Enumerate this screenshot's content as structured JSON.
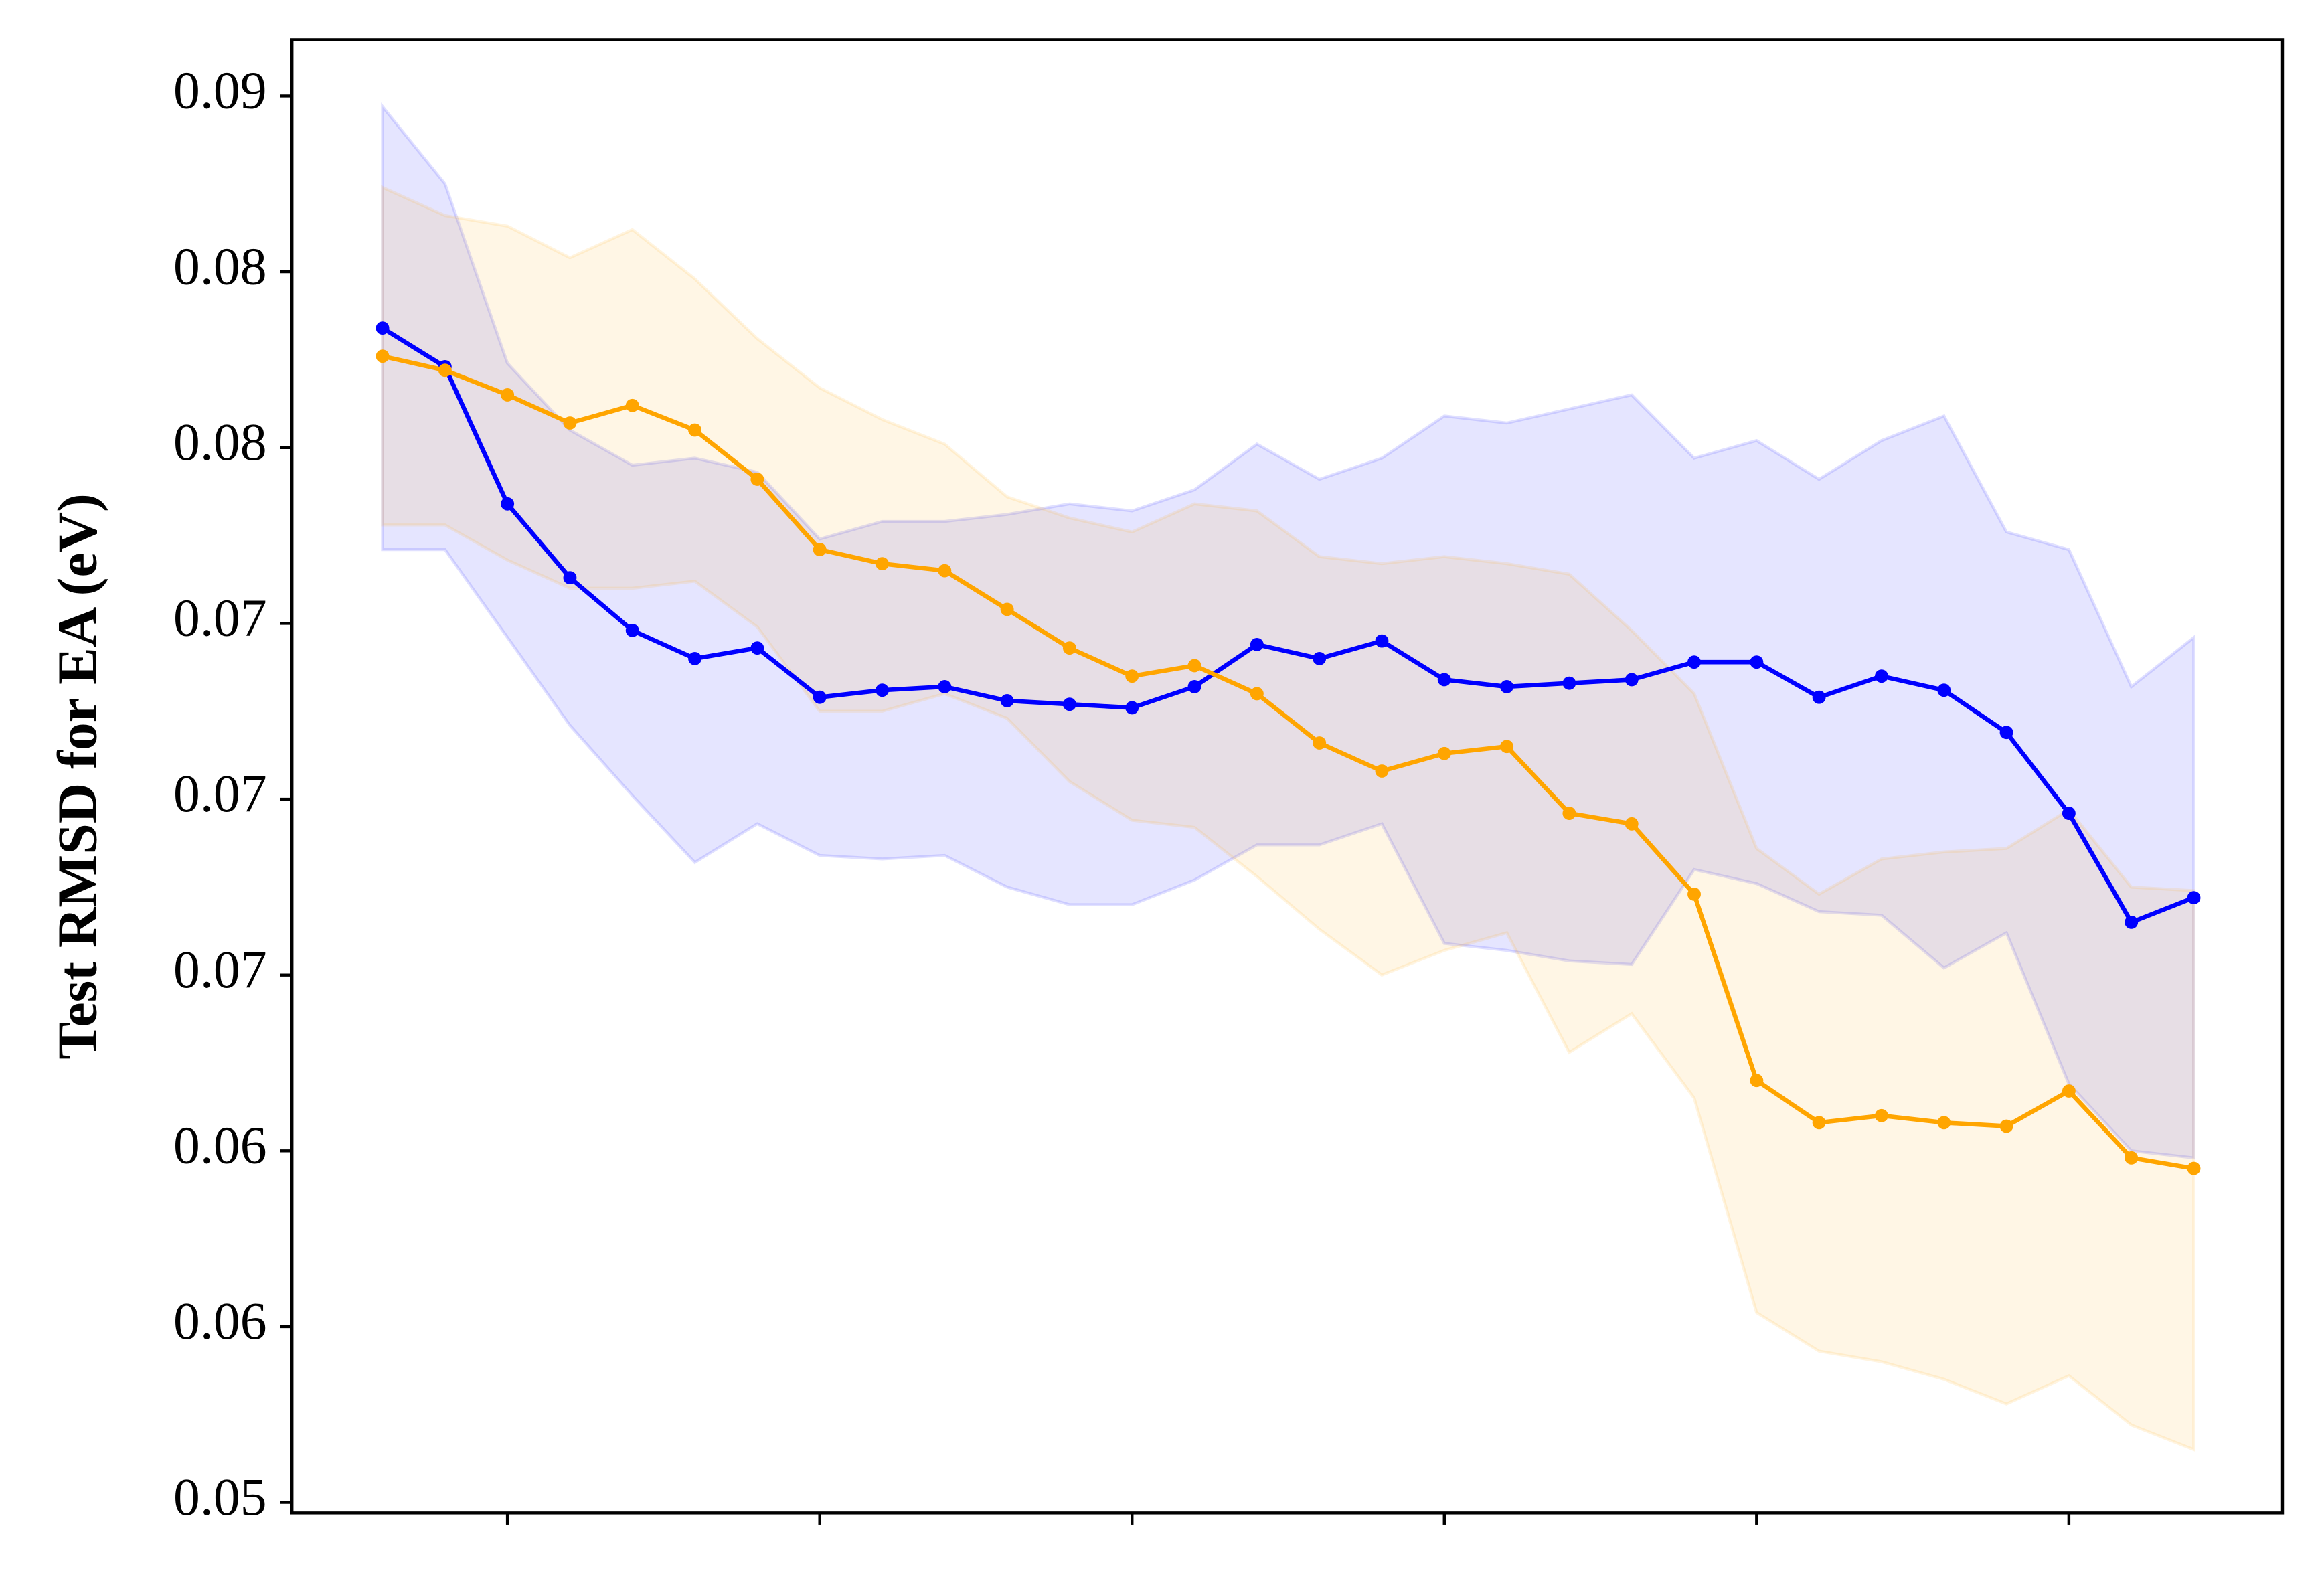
{
  "chart_data": {
    "type": "line",
    "y_label": "Test RMSD for EA (eV)",
    "x": [
      1,
      2,
      3,
      4,
      5,
      6,
      7,
      8,
      9,
      10,
      11,
      12,
      13,
      14,
      15,
      16,
      17,
      18,
      19,
      20,
      21,
      22,
      23,
      24,
      25,
      26,
      27,
      28,
      29,
      30
    ],
    "xlim": [
      -0.45,
      31.42
    ],
    "xticks": [
      3,
      8,
      13,
      18,
      23,
      28
    ],
    "ylim": [
      0.0497,
      0.0916
    ],
    "yticks": [
      {
        "value": 0.05,
        "label": "0.05"
      },
      {
        "value": 0.055,
        "label": "0.06"
      },
      {
        "value": 0.06,
        "label": "0.06"
      },
      {
        "value": 0.065,
        "label": "0.07"
      },
      {
        "value": 0.07,
        "label": "0.07"
      },
      {
        "value": 0.075,
        "label": "0.07"
      },
      {
        "value": 0.08,
        "label": "0.08"
      },
      {
        "value": 0.085,
        "label": "0.08"
      },
      {
        "value": 0.09,
        "label": "0.09"
      }
    ],
    "series": [
      {
        "color": "#0000ff",
        "values": [
          0.0834,
          0.0823,
          0.0784,
          0.0763,
          0.0748,
          0.074,
          0.0743,
          0.0729,
          0.0731,
          0.0732,
          0.0728,
          0.0727,
          0.0726,
          0.0732,
          0.0744,
          0.074,
          0.0745,
          0.0734,
          0.0732,
          0.0733,
          0.0734,
          0.0739,
          0.0739,
          0.0729,
          0.0735,
          0.0731,
          0.0719,
          0.0696,
          0.0665,
          0.0672
        ],
        "upper": [
          0.0897,
          0.0875,
          0.0824,
          0.0805,
          0.0795,
          0.0797,
          0.0793,
          0.0774,
          0.0779,
          0.0779,
          0.0781,
          0.0784,
          0.0782,
          0.0788,
          0.0801,
          0.0791,
          0.0797,
          0.0809,
          0.0807,
          0.0811,
          0.0815,
          0.0797,
          0.0802,
          0.0791,
          0.0802,
          0.0809,
          0.0776,
          0.0771,
          0.0732,
          0.0746
        ],
        "lower": [
          0.0771,
          0.0771,
          0.0746,
          0.0721,
          0.0701,
          0.0682,
          0.0693,
          0.0684,
          0.0683,
          0.0684,
          0.0675,
          0.067,
          0.067,
          0.0677,
          0.0687,
          0.0687,
          0.0693,
          0.0659,
          0.0657,
          0.0654,
          0.0653,
          0.068,
          0.0676,
          0.0668,
          0.0667,
          0.0652,
          0.0662,
          0.0619,
          0.06,
          0.0598
        ]
      },
      {
        "color": "#ffa500",
        "values": [
          0.0826,
          0.0822,
          0.0815,
          0.0807,
          0.0812,
          0.0805,
          0.0791,
          0.0771,
          0.0767,
          0.0765,
          0.0754,
          0.0743,
          0.0735,
          0.0738,
          0.073,
          0.0716,
          0.0708,
          0.0713,
          0.0715,
          0.0696,
          0.0693,
          0.0673,
          0.062,
          0.0608,
          0.061,
          0.0608,
          0.0607,
          0.0617,
          0.0598,
          0.0595
        ],
        "upper": [
          0.0874,
          0.0866,
          0.0863,
          0.0854,
          0.0862,
          0.0848,
          0.0831,
          0.0817,
          0.0808,
          0.0801,
          0.0786,
          0.078,
          0.0776,
          0.0784,
          0.0782,
          0.0769,
          0.0767,
          0.0769,
          0.0767,
          0.0764,
          0.0748,
          0.073,
          0.0686,
          0.0673,
          0.0683,
          0.0685,
          0.0686,
          0.0697,
          0.0675,
          0.0674
        ],
        "lower": [
          0.0778,
          0.0778,
          0.0768,
          0.076,
          0.076,
          0.0762,
          0.0749,
          0.0725,
          0.0725,
          0.073,
          0.0723,
          0.0705,
          0.0694,
          0.0692,
          0.0678,
          0.0663,
          0.065,
          0.0657,
          0.0662,
          0.0628,
          0.0639,
          0.0615,
          0.0554,
          0.0543,
          0.054,
          0.0535,
          0.0528,
          0.0536,
          0.0522,
          0.0515
        ]
      }
    ]
  }
}
